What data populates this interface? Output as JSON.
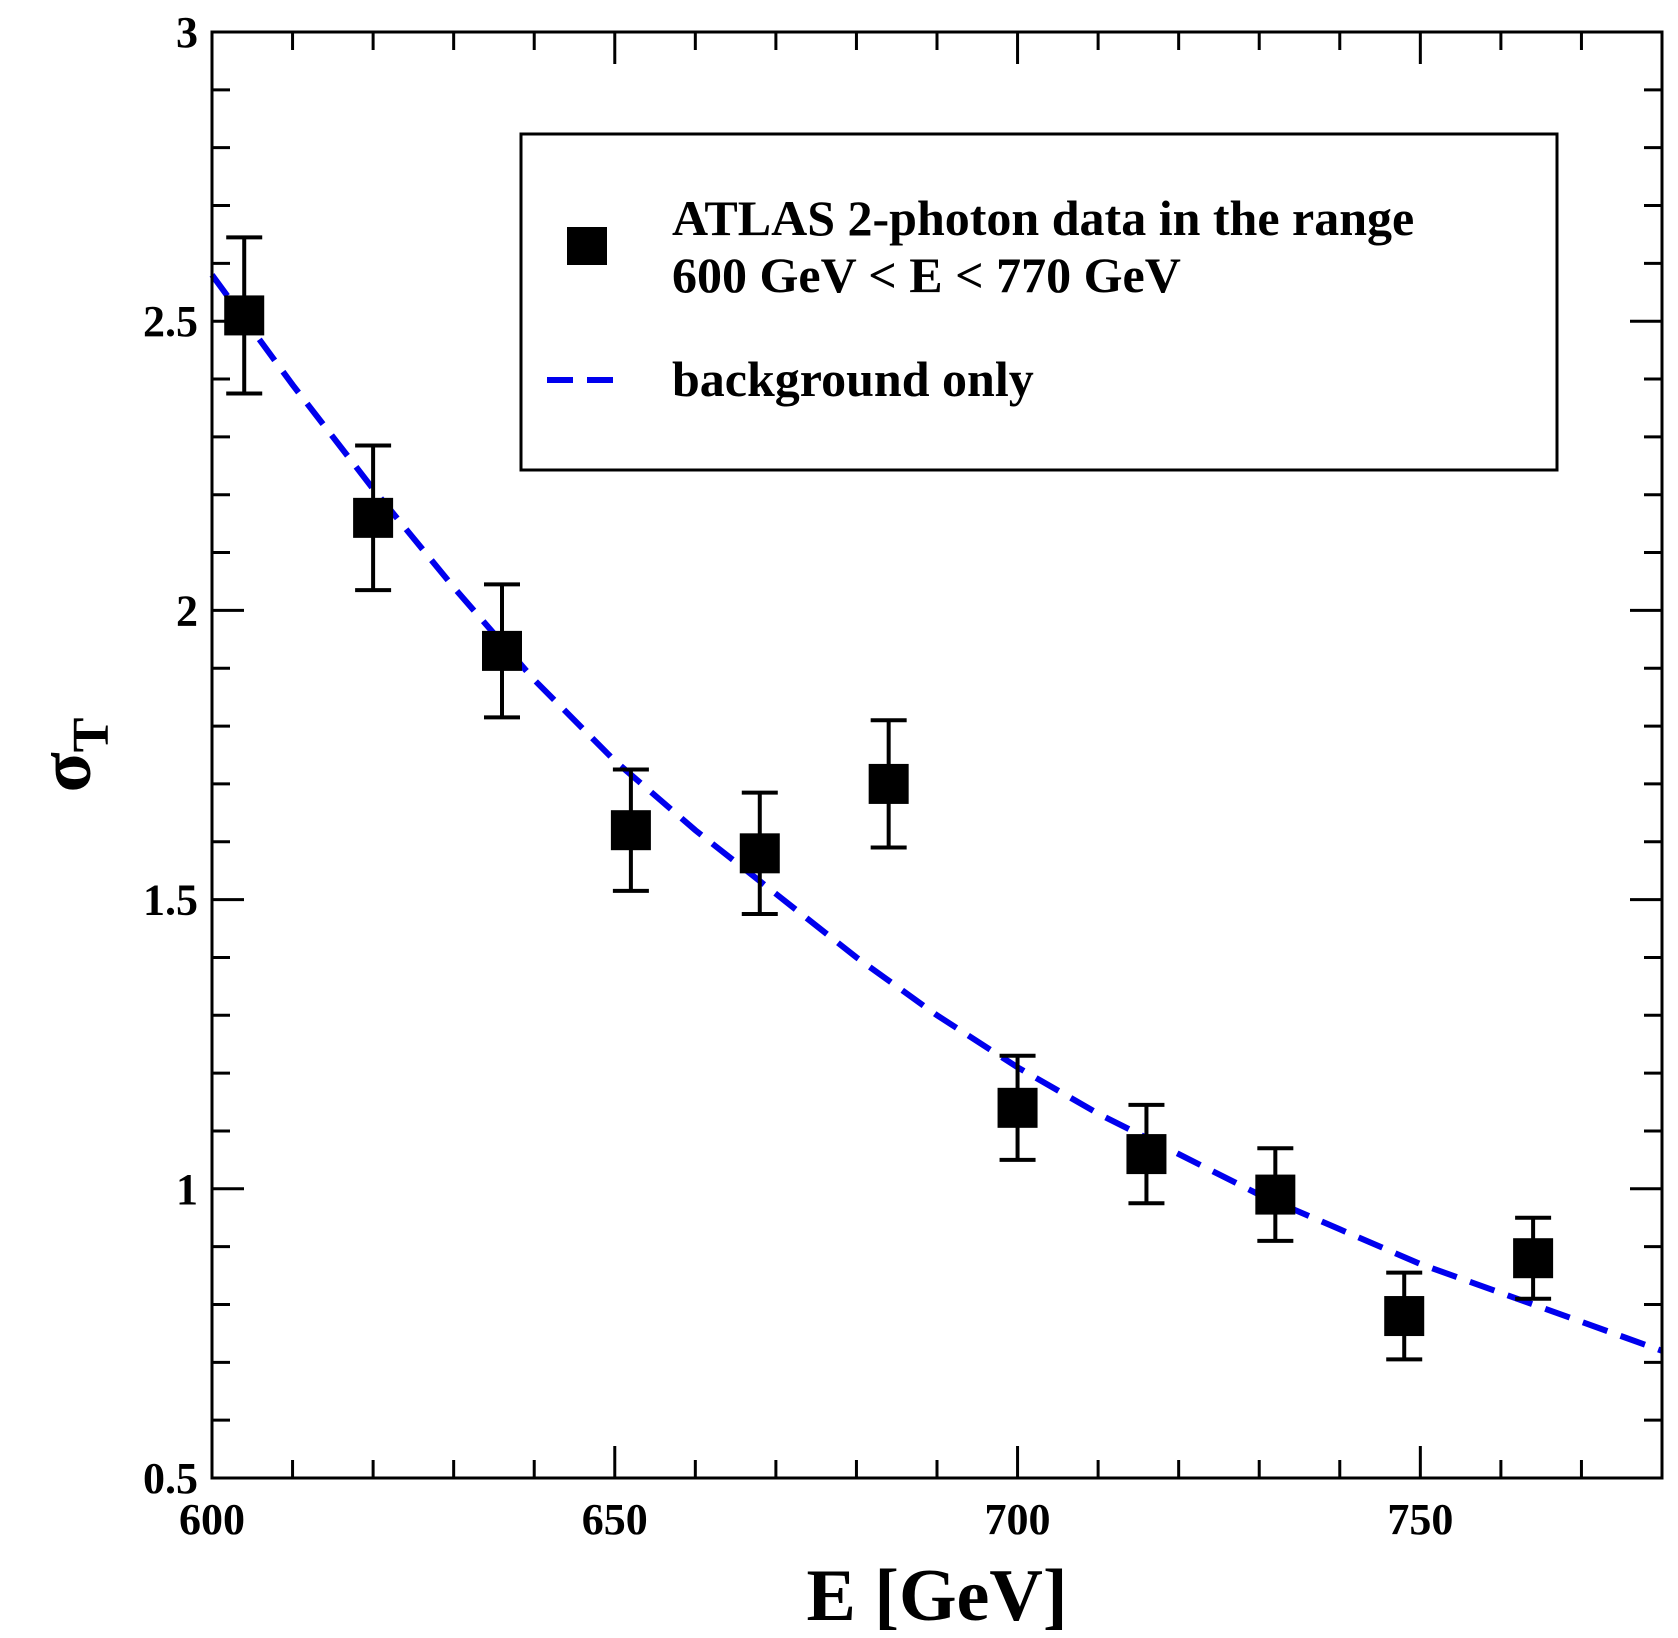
{
  "chart_data": {
    "type": "scatter",
    "xlabel": "E [GeV]",
    "ylabel": "σ",
    "ylabel_subscript": "T",
    "xlim": [
      600,
      780
    ],
    "ylim": [
      0.5,
      3
    ],
    "x_major_ticks": [
      600,
      650,
      700,
      750
    ],
    "x_minor_step": 10,
    "y_major_ticks": [
      0.5,
      1,
      1.5,
      2,
      2.5,
      3
    ],
    "y_tick_labels": [
      "0.5",
      "1",
      "1.5",
      "2",
      "2.5",
      "3"
    ],
    "y_minor_step": 0.1,
    "grid": false,
    "legend_position": "top-right",
    "series": [
      {
        "name": "ATLAS 2-photon data in the range",
        "name_line2": "600 GeV < E < 770 GeV",
        "kind": "points-with-errorbars",
        "color": "#000000",
        "points": [
          {
            "x": 604,
            "y": 2.51,
            "err": 0.135
          },
          {
            "x": 620,
            "y": 2.16,
            "err": 0.125
          },
          {
            "x": 636,
            "y": 1.93,
            "err": 0.115
          },
          {
            "x": 652,
            "y": 1.62,
            "err": 0.105
          },
          {
            "x": 668,
            "y": 1.58,
            "err": 0.105
          },
          {
            "x": 684,
            "y": 1.7,
            "err": 0.11
          },
          {
            "x": 700,
            "y": 1.14,
            "err": 0.09
          },
          {
            "x": 716,
            "y": 1.06,
            "err": 0.085
          },
          {
            "x": 732,
            "y": 0.99,
            "err": 0.08
          },
          {
            "x": 748,
            "y": 0.78,
            "err": 0.075
          },
          {
            "x": 764,
            "y": 0.88,
            "err": 0.07
          }
        ]
      },
      {
        "name": "background only",
        "kind": "dashed-line",
        "color": "#0000ee",
        "x": [
          600,
          610,
          620,
          630,
          640,
          650,
          660,
          670,
          680,
          690,
          700,
          710,
          720,
          730,
          740,
          750,
          760,
          770,
          780
        ],
        "y": [
          2.58,
          2.39,
          2.21,
          2.04,
          1.88,
          1.74,
          1.62,
          1.51,
          1.4,
          1.3,
          1.21,
          1.13,
          1.06,
          0.99,
          0.93,
          0.87,
          0.82,
          0.77,
          0.72
        ]
      }
    ]
  }
}
